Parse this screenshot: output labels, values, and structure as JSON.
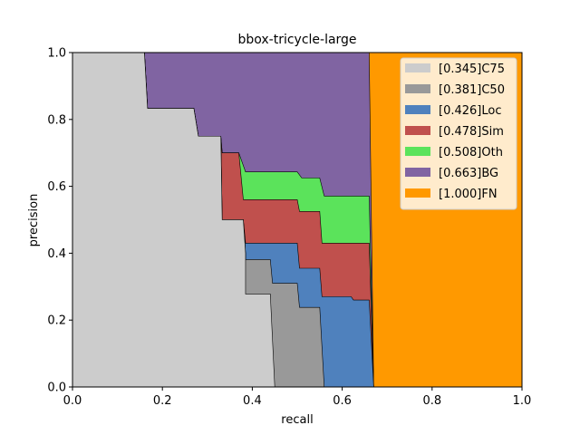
{
  "chart_data": {
    "type": "area",
    "title": "bbox-tricycle-large",
    "xlabel": "recall",
    "ylabel": "precision",
    "xlim": [
      0,
      1
    ],
    "ylim": [
      0,
      1
    ],
    "xticks": [
      "0.0",
      "0.2",
      "0.4",
      "0.6",
      "0.8",
      "1.0"
    ],
    "yticks": [
      "0.0",
      "0.2",
      "0.4",
      "0.6",
      "0.8",
      "1.0"
    ],
    "grid": false,
    "legend_position": "top-right",
    "stacked": true,
    "series": [
      {
        "name": "[0.345]C75",
        "color": "#cccccc",
        "points": [
          [
            0,
            1
          ],
          [
            0.16,
            1
          ],
          [
            0.167,
            0.833
          ],
          [
            0.27,
            0.833
          ],
          [
            0.28,
            0.75
          ],
          [
            0.33,
            0.75
          ],
          [
            0.333,
            0.5
          ],
          [
            0.38,
            0.5
          ],
          [
            0.385,
            0.4
          ],
          [
            0.385,
            0.278
          ],
          [
            0.44,
            0.278
          ],
          [
            0.45,
            0
          ],
          [
            0.45,
            0
          ],
          [
            1,
            0
          ]
        ]
      },
      {
        "name": "[0.381]C50",
        "color": "#999999",
        "points": [
          [
            0,
            1
          ],
          [
            0.16,
            1
          ],
          [
            0.167,
            0.833
          ],
          [
            0.27,
            0.833
          ],
          [
            0.28,
            0.75
          ],
          [
            0.33,
            0.75
          ],
          [
            0.333,
            0.5
          ],
          [
            0.38,
            0.5
          ],
          [
            0.385,
            0.4
          ],
          [
            0.385,
            0.381
          ],
          [
            0.44,
            0.381
          ],
          [
            0.445,
            0.31
          ],
          [
            0.5,
            0.31
          ],
          [
            0.505,
            0.238
          ],
          [
            0.55,
            0.238
          ],
          [
            0.56,
            0
          ],
          [
            1,
            0
          ]
        ]
      },
      {
        "name": "[0.426]Loc",
        "color": "#4f81bd",
        "points": [
          [
            0,
            1
          ],
          [
            0.16,
            1
          ],
          [
            0.167,
            0.833
          ],
          [
            0.27,
            0.833
          ],
          [
            0.28,
            0.75
          ],
          [
            0.33,
            0.75
          ],
          [
            0.333,
            0.5
          ],
          [
            0.38,
            0.5
          ],
          [
            0.385,
            0.43
          ],
          [
            0.5,
            0.43
          ],
          [
            0.505,
            0.355
          ],
          [
            0.55,
            0.355
          ],
          [
            0.555,
            0.27
          ],
          [
            0.62,
            0.27
          ],
          [
            0.625,
            0.26
          ],
          [
            0.66,
            0.26
          ],
          [
            0.67,
            0
          ],
          [
            1,
            0
          ]
        ]
      },
      {
        "name": "[0.478]Sim",
        "color": "#c0504d",
        "points": [
          [
            0,
            1
          ],
          [
            0.16,
            1
          ],
          [
            0.167,
            0.833
          ],
          [
            0.27,
            0.833
          ],
          [
            0.28,
            0.75
          ],
          [
            0.33,
            0.75
          ],
          [
            0.333,
            0.7
          ],
          [
            0.37,
            0.7
          ],
          [
            0.38,
            0.56
          ],
          [
            0.5,
            0.56
          ],
          [
            0.505,
            0.525
          ],
          [
            0.55,
            0.525
          ],
          [
            0.555,
            0.43
          ],
          [
            0.66,
            0.43
          ],
          [
            0.67,
            0
          ],
          [
            1,
            0
          ]
        ]
      },
      {
        "name": "[0.508]Oth",
        "color": "#5be35b",
        "points": [
          [
            0,
            1
          ],
          [
            0.16,
            1
          ],
          [
            0.167,
            0.833
          ],
          [
            0.27,
            0.833
          ],
          [
            0.28,
            0.75
          ],
          [
            0.33,
            0.75
          ],
          [
            0.333,
            0.7
          ],
          [
            0.37,
            0.7
          ],
          [
            0.385,
            0.643
          ],
          [
            0.5,
            0.643
          ],
          [
            0.51,
            0.625
          ],
          [
            0.55,
            0.625
          ],
          [
            0.56,
            0.571
          ],
          [
            0.66,
            0.571
          ],
          [
            0.67,
            0
          ],
          [
            1,
            0
          ]
        ]
      },
      {
        "name": "[0.663]BG",
        "color": "#8064a2",
        "points": [
          [
            0,
            1
          ],
          [
            0.66,
            1
          ],
          [
            0.67,
            0
          ],
          [
            1,
            0
          ]
        ]
      },
      {
        "name": "[1.000]FN",
        "color": "#ff9900",
        "points": [
          [
            0,
            1
          ],
          [
            1,
            1
          ],
          [
            1,
            0
          ]
        ]
      }
    ]
  }
}
